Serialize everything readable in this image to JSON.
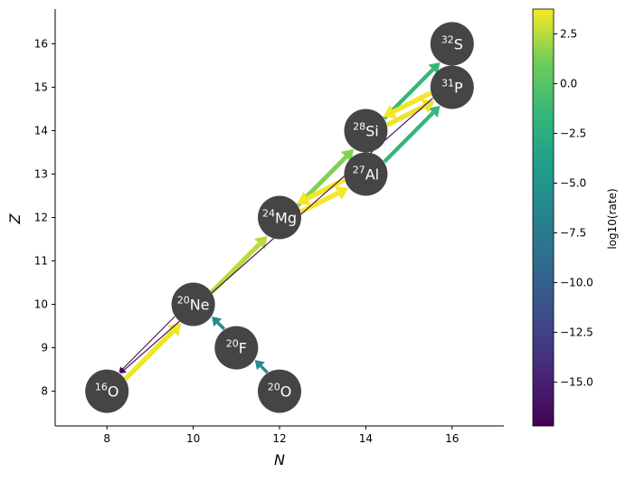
{
  "chart_data": {
    "type": "scatter",
    "xlabel": "N",
    "ylabel": "Z",
    "xlim": [
      6.8,
      17.2
    ],
    "ylim": [
      7.2,
      16.8
    ],
    "x_ticks": [
      8,
      10,
      12,
      14,
      16
    ],
    "y_ticks": [
      8,
      9,
      10,
      11,
      12,
      13,
      14,
      15,
      16
    ],
    "x_tick_labels": [
      "8",
      "10",
      "12",
      "14",
      "16"
    ],
    "y_tick_labels": [
      "8",
      "9",
      "10",
      "11",
      "12",
      "13",
      "14",
      "15",
      "16"
    ],
    "nodes": [
      {
        "id": "O16",
        "mass": "16",
        "element": "O",
        "N": 8,
        "Z": 8
      },
      {
        "id": "O20",
        "mass": "20",
        "element": "O",
        "N": 12,
        "Z": 8
      },
      {
        "id": "F20",
        "mass": "20",
        "element": "F",
        "N": 11,
        "Z": 9
      },
      {
        "id": "Ne20",
        "mass": "20",
        "element": "Ne",
        "N": 10,
        "Z": 10
      },
      {
        "id": "Mg24",
        "mass": "24",
        "element": "Mg",
        "N": 12,
        "Z": 12
      },
      {
        "id": "Al27",
        "mass": "27",
        "element": "Al",
        "N": 14,
        "Z": 13
      },
      {
        "id": "Si28",
        "mass": "28",
        "element": "Si",
        "N": 14,
        "Z": 14
      },
      {
        "id": "P31",
        "mass": "31",
        "element": "P",
        "N": 16,
        "Z": 15
      },
      {
        "id": "S32",
        "mass": "32",
        "element": "S",
        "N": 16,
        "Z": 16
      }
    ],
    "links": [
      {
        "from": "O16",
        "to": "Ne20",
        "rate": 3.5
      },
      {
        "from": "Ne20",
        "to": "O16",
        "rate": -17
      },
      {
        "from": "Ne20",
        "to": "Mg24",
        "rate": 2.5
      },
      {
        "from": "Mg24",
        "to": "Si28",
        "rate": 1.5
      },
      {
        "from": "Al27",
        "to": "Mg24",
        "rate": 3.6
      },
      {
        "from": "Mg24",
        "to": "Al27",
        "rate": 3.6
      },
      {
        "from": "Si28",
        "to": "S32",
        "rate": -1.5
      },
      {
        "from": "Al27",
        "to": "P31",
        "rate": -1.5
      },
      {
        "from": "P31",
        "to": "Si28",
        "rate": 3.6
      },
      {
        "from": "Si28",
        "to": "P31",
        "rate": 3.4
      },
      {
        "from": "P31",
        "to": "O16",
        "rate": -16.5
      },
      {
        "from": "O20",
        "to": "F20",
        "rate": -6
      },
      {
        "from": "F20",
        "to": "Ne20",
        "rate": -6
      }
    ],
    "colorbar": {
      "label": "log10(rate)",
      "range": [
        -17.2,
        3.75
      ],
      "ticks": [
        2.5,
        0.0,
        -2.5,
        -5.0,
        -7.5,
        -10.0,
        -12.5,
        -15.0
      ],
      "tick_labels": [
        "2.5",
        "0.0",
        "−2.5",
        "−5.0",
        "−7.5",
        "−10.0",
        "−12.5",
        "−15.0"
      ],
      "colormap": "viridis"
    },
    "colors": {
      "node_fill": "#454545",
      "node_text": "#ffffff"
    }
  }
}
